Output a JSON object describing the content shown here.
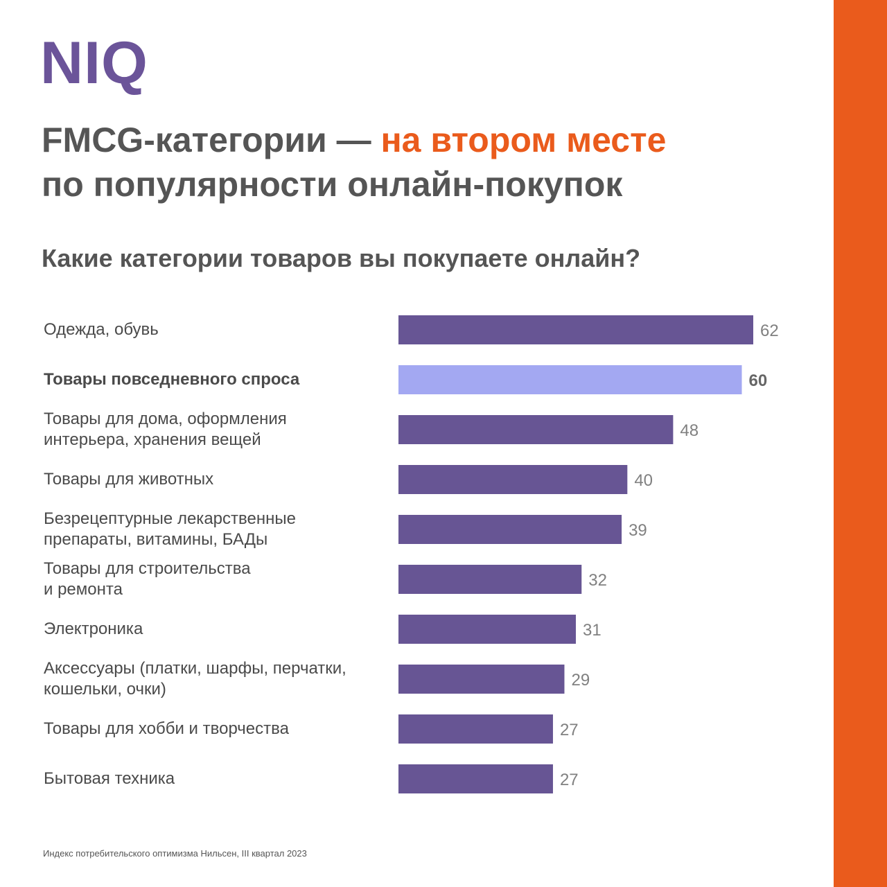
{
  "logo": {
    "text": "NIQ",
    "color": "#6b5499"
  },
  "headline": {
    "part1": "FMCG-категории — ",
    "accent": "на втором месте",
    "part2": "по популярности онлайн-покупок",
    "accent_color": "#ea5b1c"
  },
  "side_stripe_color": "#ea5b1c",
  "chart_data": {
    "type": "bar",
    "orientation": "horizontal",
    "title": "Какие категории товаров вы покупаете онлайн?",
    "categories": [
      [
        "Одежда, обувь"
      ],
      [
        "Товары повседневного спроса"
      ],
      [
        "Товары для дома, оформления",
        "интерьера, хранения вещей"
      ],
      [
        "Товары для животных"
      ],
      [
        "Безрецептурные лекарственные",
        "препараты, витамины, БАДы"
      ],
      [
        "Товары для строительства",
        "и ремонта"
      ],
      [
        "Электроника"
      ],
      [
        "Аксессуары (платки, шарфы, перчатки,",
        "кошельки, очки)"
      ],
      [
        "Товары для хобби и творчества"
      ],
      [
        "Бытовая техника"
      ]
    ],
    "values": [
      62,
      60,
      48,
      40,
      39,
      32,
      31,
      29,
      27,
      27
    ],
    "highlight_index": 1,
    "bar_color": "#675594",
    "highlight_color": "#a3a8f2",
    "grid": false
  },
  "source": "Индекс потребительского оптимизма Нильсен, III квартал 2023"
}
